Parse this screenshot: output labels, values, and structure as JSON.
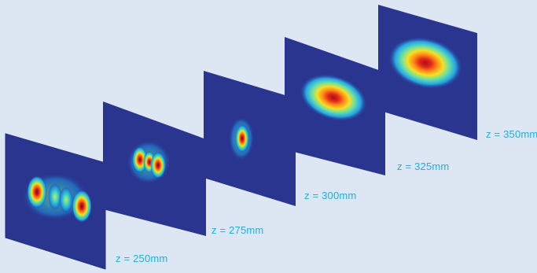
{
  "colors": {
    "background": "#dde6f3",
    "plane": "#2a3590",
    "label": "#22aee0"
  },
  "planes": [
    {
      "label": "z = 250mm",
      "pattern": "four-lobes"
    },
    {
      "label": "z = 275mm",
      "pattern": "three-lobes"
    },
    {
      "label": "z = 300mm",
      "pattern": "narrow-focus"
    },
    {
      "label": "z = 325mm",
      "pattern": "ellipse-medium"
    },
    {
      "label": "z = 350mm",
      "pattern": "ellipse-large"
    }
  ]
}
